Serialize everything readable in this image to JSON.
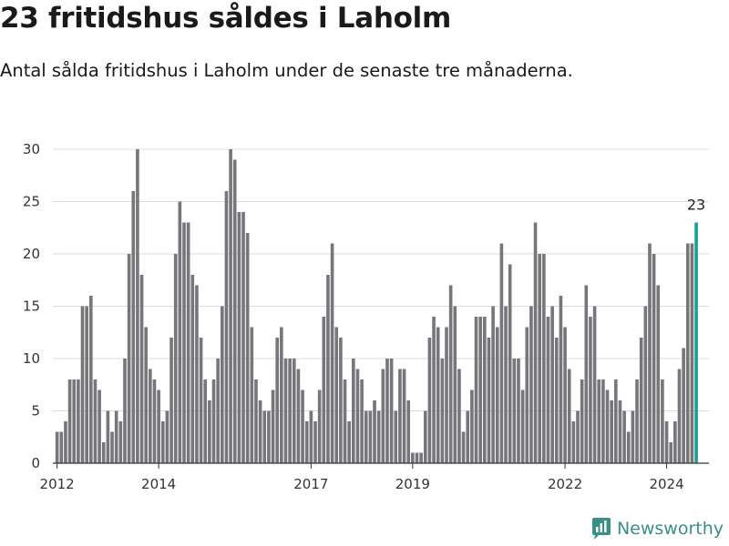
{
  "header": {
    "title": "23 fritidshus såldes i Laholm",
    "subtitle": "Antal sålda fritidshus i Laholm under de senaste tre månaderna."
  },
  "logo": {
    "text": "Newsworthy",
    "icon": "newsworthy-logo-icon"
  },
  "colors": {
    "bar": "#77767b",
    "highlight": "#1a9e96",
    "grid": "#dcdcdc",
    "axis": "#333333"
  },
  "chart_data": {
    "type": "bar",
    "title": "23 fritidshus såldes i Laholm",
    "subtitle": "Antal sålda fritidshus i Laholm under de senaste tre månaderna.",
    "xlabel": "",
    "ylabel": "",
    "ylim": [
      0,
      30
    ],
    "yticks": [
      0,
      5,
      10,
      15,
      20,
      25,
      30
    ],
    "xtick_labels": [
      "2012",
      "2014",
      "2017",
      "2019",
      "2022",
      "2024"
    ],
    "xlim": [
      "2011-12",
      "2024-11"
    ],
    "grid": true,
    "highlight_label": "23",
    "series": [
      {
        "start_month": "2012-01",
        "values": [
          3,
          3,
          4,
          8,
          8,
          8,
          15,
          15,
          16,
          8,
          7,
          2,
          5,
          3,
          5,
          4,
          10,
          20,
          26,
          30,
          18,
          13,
          9,
          8,
          7,
          4,
          5,
          12,
          20,
          25,
          23,
          23,
          18,
          17,
          12,
          8,
          6,
          8,
          10,
          15,
          26,
          30,
          29,
          24,
          24,
          22,
          13,
          8,
          6,
          5,
          5,
          7,
          12,
          13,
          10,
          10,
          10,
          9,
          7,
          4,
          5,
          4,
          7,
          14,
          18,
          21,
          13,
          12,
          8,
          4,
          10,
          9,
          8,
          5,
          5,
          6,
          5,
          9,
          10,
          10,
          5,
          9,
          9,
          6,
          1,
          1,
          1,
          5,
          12,
          14,
          13,
          10,
          13,
          17,
          15,
          9,
          3,
          5,
          7,
          14,
          14,
          14,
          12,
          15,
          13,
          21,
          15,
          19,
          10,
          10,
          7,
          13,
          15,
          23,
          20,
          20,
          14,
          15,
          12,
          16,
          13,
          9,
          4,
          5,
          8,
          17,
          14,
          15,
          8,
          8,
          7,
          6,
          8,
          6,
          5,
          3,
          5,
          8,
          12,
          15,
          21,
          20,
          17,
          8,
          4,
          2,
          4,
          9,
          11,
          21,
          21,
          23
        ]
      }
    ]
  }
}
